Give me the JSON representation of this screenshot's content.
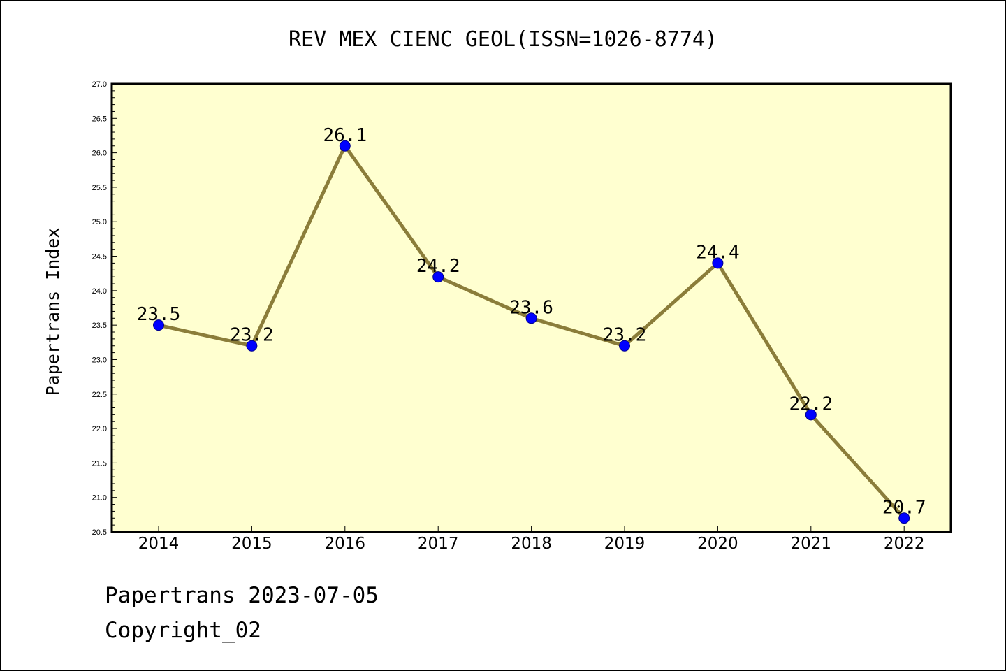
{
  "chart_data": {
    "type": "line",
    "title": "REV MEX CIENC GEOL(ISSN=1026-8774)",
    "xlabel": "",
    "ylabel": "Papertrans Index",
    "categories": [
      "2014",
      "2015",
      "2016",
      "2017",
      "2018",
      "2019",
      "2020",
      "2021",
      "2022"
    ],
    "series": [
      {
        "values": [
          23.5,
          23.2,
          26.1,
          24.2,
          23.6,
          23.2,
          24.4,
          22.2,
          20.7
        ],
        "labels": [
          "23.5",
          "23.2",
          "26.1",
          "24.2",
          "23.6",
          "23.2",
          "24.4",
          "22.2",
          "20.7"
        ]
      }
    ],
    "ylim": [
      20.5,
      27.0
    ],
    "yticks": [
      "20.5",
      "21.0",
      "21.5",
      "22.0",
      "22.5",
      "23.0",
      "23.5",
      "24.0",
      "24.5",
      "25.0",
      "25.5",
      "26.0",
      "26.5",
      "27.0"
    ],
    "grid": false,
    "colors": {
      "plot_background": "#ffffd0",
      "line": "#8b7d3a",
      "marker_fill": "#0000ff",
      "marker_stroke": "#00008b"
    }
  },
  "footer": {
    "line1": "Papertrans 2023-07-05",
    "line2": "Copyright_02"
  }
}
